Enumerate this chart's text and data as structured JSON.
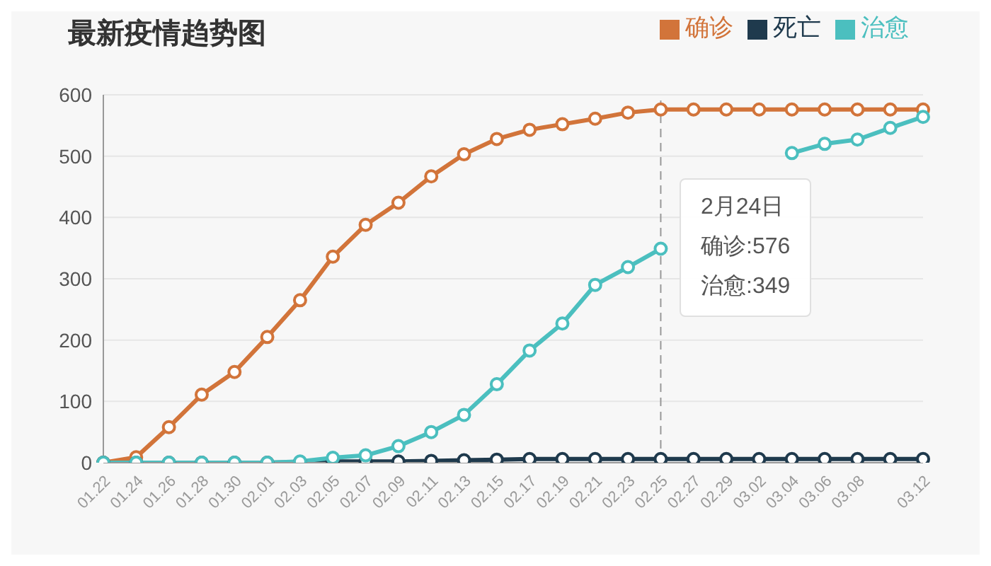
{
  "chart_data": {
    "type": "line",
    "title": "最新疫情趋势图",
    "categories": [
      "01.22",
      "01.24",
      "01.26",
      "01.28",
      "01.30",
      "02.01",
      "02.03",
      "02.05",
      "02.07",
      "02.09",
      "02.11",
      "02.13",
      "02.15",
      "02.17",
      "02.19",
      "02.21",
      "02.23",
      "02.25",
      "02.27",
      "02.29",
      "03.02",
      "03.04",
      "03.06",
      "03.08",
      null,
      "03.12"
    ],
    "series": [
      {
        "name": "确诊",
        "color": "#d2743a",
        "values": [
          0,
          9,
          58,
          111,
          148,
          205,
          265,
          336,
          388,
          424,
          467,
          503,
          528,
          543,
          552,
          561,
          571,
          576,
          576,
          576,
          576,
          576,
          576,
          576,
          576,
          576
        ]
      },
      {
        "name": "死亡",
        "color": "#1f3a4d",
        "values": [
          0,
          0,
          0,
          0,
          0,
          0,
          1,
          2,
          2,
          2,
          3,
          4,
          5,
          6,
          6,
          6,
          6,
          6,
          6,
          6,
          6,
          6,
          6,
          6,
          6,
          6
        ]
      },
      {
        "name": "治愈",
        "color": "#4bbfbf",
        "values": [
          0,
          0,
          0,
          0,
          0,
          0,
          2,
          8,
          12,
          27,
          50,
          78,
          128,
          183,
          227,
          290,
          319,
          349,
          null,
          null,
          null,
          505,
          520,
          527,
          546,
          564
        ]
      }
    ],
    "ylim": [
      0,
      600
    ],
    "yticks": [
      0,
      100,
      200,
      300,
      400,
      500,
      600
    ],
    "grid": "y",
    "legend": "top right",
    "marker": "circle",
    "line_style": "solid",
    "ref_lines": [
      {
        "axis": "x",
        "value": "02.25",
        "color": "#999999",
        "line_style": "dashed"
      }
    ],
    "annotations": [
      "2月24日",
      "确诊:576",
      "治愈:349"
    ]
  }
}
